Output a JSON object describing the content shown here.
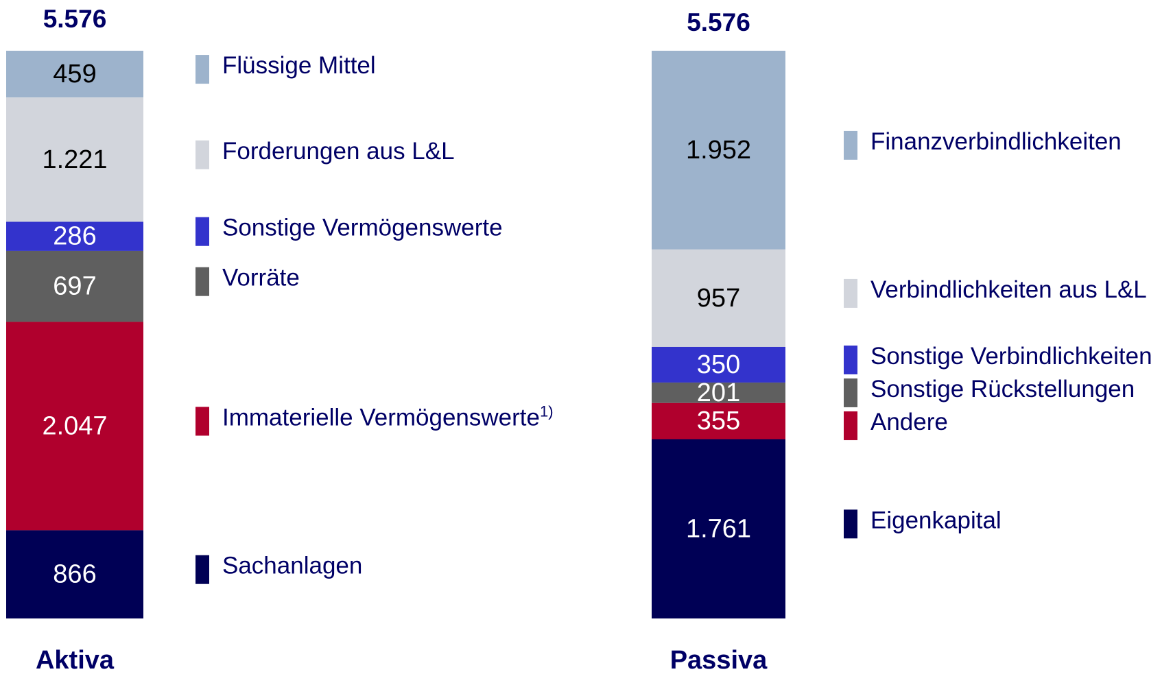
{
  "chart_data": [
    {
      "type": "bar",
      "stacked": true,
      "categories": [
        "Aktiva"
      ],
      "total": 5576,
      "total_label": "5.576",
      "ylim": [
        0,
        5576
      ],
      "series": [
        {
          "name": "Flüssige Mittel",
          "color": "#9db3cc",
          "values": [
            459
          ]
        },
        {
          "name": "Forderungen aus L&L",
          "color": "#d2d5dc",
          "values": [
            1221
          ],
          "value_labels": [
            "1.221"
          ]
        },
        {
          "name": "Sonstige Vermögenswerte",
          "color": "#3333cc",
          "values": [
            286
          ]
        },
        {
          "name": "Vorräte",
          "color": "#5f5f5f",
          "values": [
            697
          ]
        },
        {
          "name": "Immaterielle Vermögenswerte",
          "footnote": "1)",
          "color": "#b0002d",
          "values": [
            2047
          ],
          "value_labels": [
            "2.047"
          ]
        },
        {
          "name": "Sachanlagen",
          "color": "#000055",
          "values": [
            866
          ]
        }
      ]
    },
    {
      "type": "bar",
      "stacked": true,
      "categories": [
        "Passiva"
      ],
      "total": 5576,
      "total_label": "5.576",
      "ylim": [
        0,
        5576
      ],
      "series": [
        {
          "name": "Finanzverbindlichkeiten",
          "color": "#9db3cc",
          "values": [
            1952
          ],
          "value_labels": [
            "1.952"
          ]
        },
        {
          "name": "Verbindlichkeiten aus L&L",
          "color": "#d2d5dc",
          "values": [
            957
          ]
        },
        {
          "name": "Sonstige Verbindlichkeiten",
          "color": "#3333cc",
          "values": [
            350
          ]
        },
        {
          "name": "Sonstige Rückstellungen",
          "color": "#5f5f5f",
          "values": [
            201
          ]
        },
        {
          "name": "Andere",
          "color": "#b0002d",
          "values": [
            355
          ]
        },
        {
          "name": "Eigenkapital",
          "color": "#000055",
          "values": [
            1761
          ],
          "value_labels": [
            "1.761"
          ]
        }
      ]
    }
  ]
}
